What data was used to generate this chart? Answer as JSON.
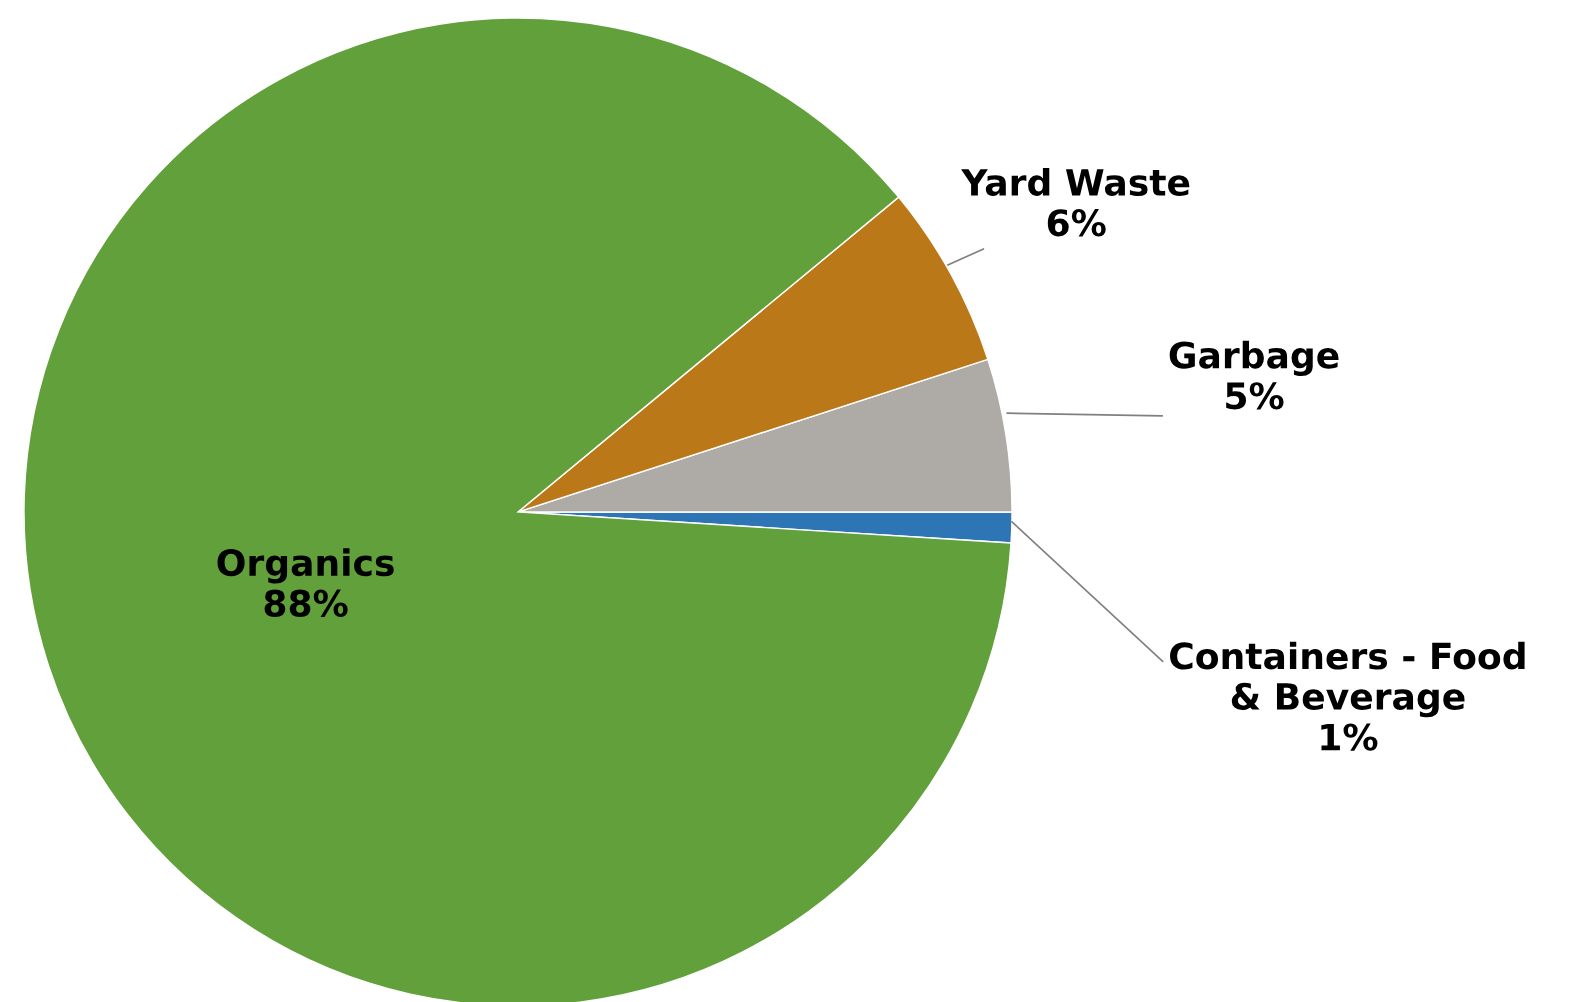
{
  "chart_data": {
    "type": "pie",
    "categories": [
      "Containers - Food & Beverage",
      "Garbage",
      "Yard Waste",
      "Organics"
    ],
    "values": [
      1,
      5,
      6,
      88
    ],
    "colors": [
      "#2e75b6",
      "#aeaaa6",
      "#bb7819",
      "#61a03a"
    ],
    "value_labels": [
      "1%",
      "5%",
      "6%",
      "88%"
    ],
    "legend": false
  }
}
